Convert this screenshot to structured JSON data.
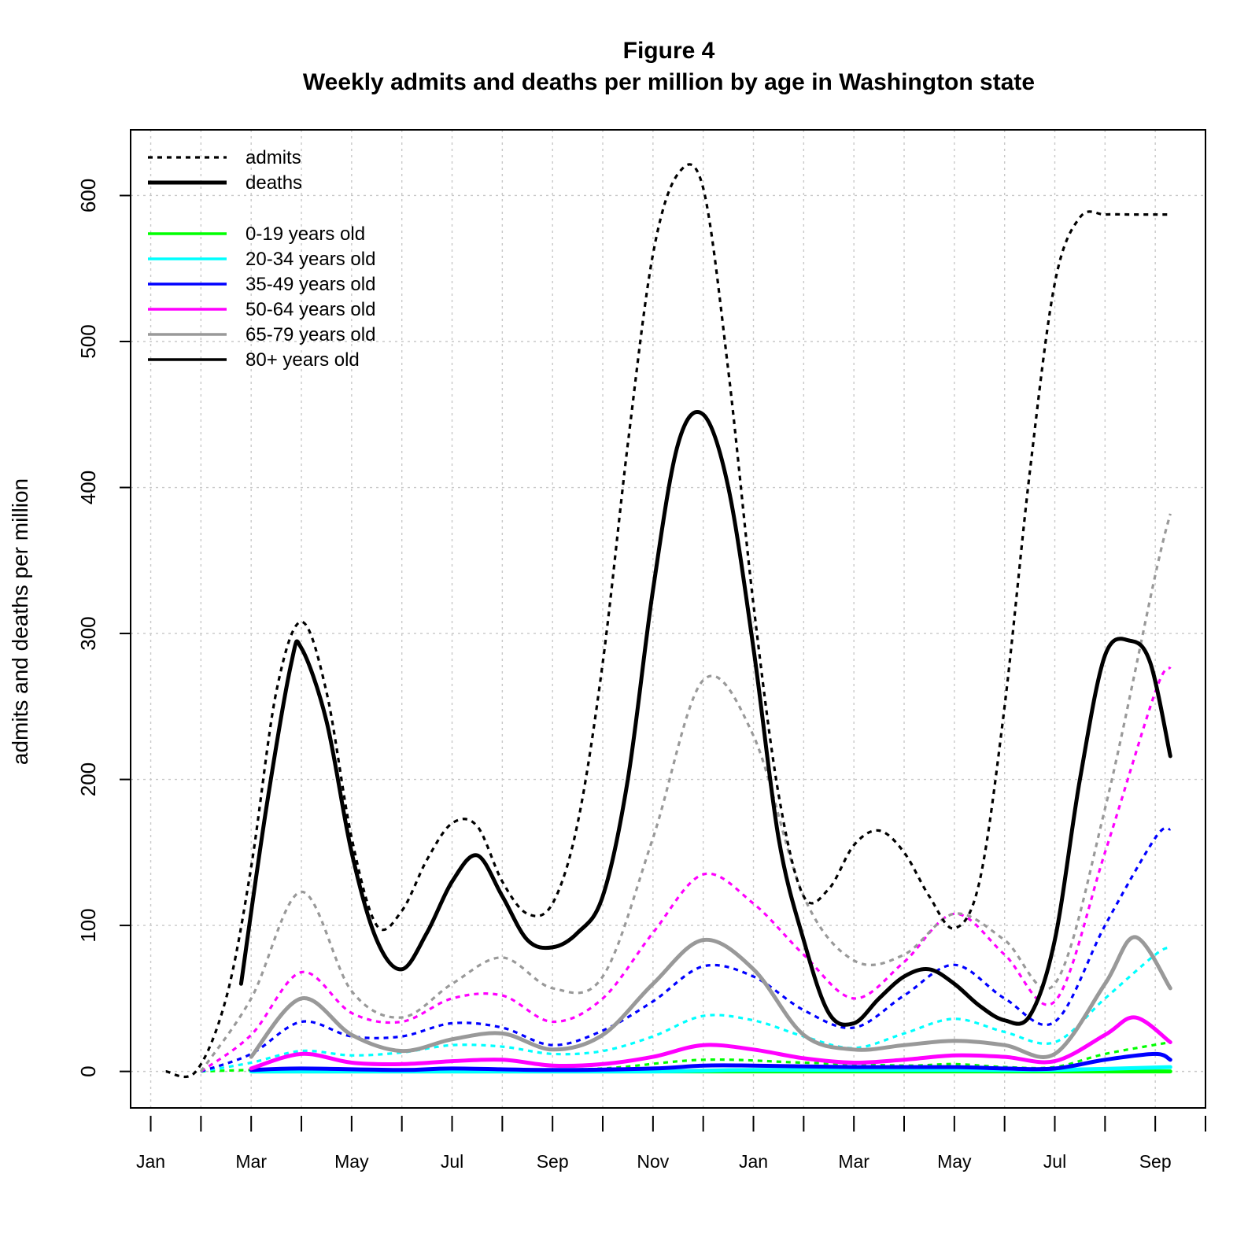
{
  "chart_data": {
    "type": "line",
    "title": "Figure 4",
    "subtitle": "Weekly admits and deaths per million by age in Washington state",
    "xlabel": "",
    "ylabel": "admits and deaths per million",
    "x_unit": "month index (0 = Jan, year 1; 12 = Jan, year 2)",
    "xlim": [
      -0.4,
      21.0
    ],
    "ylim": [
      -25,
      645
    ],
    "yticks": [
      0,
      100,
      200,
      300,
      400,
      500,
      600
    ],
    "xticks": [
      {
        "x": 0,
        "label": "Jan"
      },
      {
        "x": 1,
        "label": ""
      },
      {
        "x": 2,
        "label": "Mar"
      },
      {
        "x": 3,
        "label": ""
      },
      {
        "x": 4,
        "label": "May"
      },
      {
        "x": 5,
        "label": ""
      },
      {
        "x": 6,
        "label": "Jul"
      },
      {
        "x": 7,
        "label": ""
      },
      {
        "x": 8,
        "label": "Sep"
      },
      {
        "x": 9,
        "label": ""
      },
      {
        "x": 10,
        "label": "Nov"
      },
      {
        "x": 11,
        "label": ""
      },
      {
        "x": 12,
        "label": "Jan"
      },
      {
        "x": 13,
        "label": ""
      },
      {
        "x": 14,
        "label": "Mar"
      },
      {
        "x": 15,
        "label": ""
      },
      {
        "x": 16,
        "label": "May"
      },
      {
        "x": 17,
        "label": ""
      },
      {
        "x": 18,
        "label": "Jul"
      },
      {
        "x": 19,
        "label": ""
      },
      {
        "x": 20,
        "label": "Sep"
      },
      {
        "x": 21,
        "label": ""
      }
    ],
    "grid": true,
    "legend_position": "top-left",
    "legend": {
      "linetypes": [
        {
          "label": "admits",
          "style": "dotted"
        },
        {
          "label": "deaths",
          "style": "solid"
        }
      ],
      "age_groups": [
        {
          "label": "0-19 years old",
          "color": "#00ff00"
        },
        {
          "label": "20-34 years old",
          "color": "#00ffff"
        },
        {
          "label": "35-49 years old",
          "color": "#0000ff"
        },
        {
          "label": "50-64 years old",
          "color": "#ff00ff"
        },
        {
          "label": "65-79 years old",
          "color": "#999999"
        },
        {
          "label": "80+ years old",
          "color": "#000000"
        }
      ]
    },
    "series": [
      {
        "age_group": "0-19 years old",
        "measure": "admits",
        "color": "#00ff00",
        "x": [
          1.0,
          2.0,
          3.0,
          5.0,
          7.0,
          9.0,
          11.0,
          13.0,
          15.0,
          16.0,
          17.0,
          18.0,
          19.0,
          20.3
        ],
        "y": [
          0,
          1,
          1,
          1,
          1,
          2,
          8,
          6,
          4,
          5,
          3,
          3,
          12,
          20
        ]
      },
      {
        "age_group": "0-19 years old",
        "measure": "deaths",
        "color": "#00ff00",
        "x": [
          2.0,
          6.0,
          10.0,
          14.0,
          18.0,
          20.3
        ],
        "y": [
          0,
          0,
          0,
          0,
          0,
          0
        ]
      },
      {
        "age_group": "20-34 years old",
        "measure": "admits",
        "color": "#00ffff",
        "x": [
          1.0,
          2.0,
          3.0,
          4.0,
          5.0,
          6.0,
          7.0,
          8.0,
          9.0,
          10.0,
          11.0,
          12.0,
          13.0,
          14.0,
          15.0,
          16.0,
          17.0,
          18.0,
          19.0,
          20.0,
          20.3
        ],
        "y": [
          0,
          6,
          14,
          11,
          13,
          18,
          17,
          12,
          14,
          24,
          38,
          35,
          24,
          16,
          26,
          36,
          27,
          20,
          50,
          80,
          85
        ]
      },
      {
        "age_group": "20-34 years old",
        "measure": "deaths",
        "color": "#00ffff",
        "x": [
          2.0,
          6.0,
          10.0,
          12.0,
          16.0,
          18.0,
          20.3
        ],
        "y": [
          0,
          0,
          0,
          1,
          1,
          1,
          3
        ]
      },
      {
        "age_group": "35-49 years old",
        "measure": "admits",
        "color": "#0000ff",
        "x": [
          1.0,
          2.0,
          3.0,
          4.0,
          5.0,
          6.0,
          7.0,
          8.0,
          9.0,
          10.0,
          11.0,
          12.0,
          13.0,
          14.0,
          15.0,
          16.0,
          17.0,
          18.0,
          19.0,
          20.0,
          20.3
        ],
        "y": [
          0,
          12,
          34,
          24,
          24,
          33,
          30,
          18,
          28,
          48,
          72,
          65,
          42,
          30,
          52,
          73,
          50,
          34,
          100,
          160,
          166
        ]
      },
      {
        "age_group": "35-49 years old",
        "measure": "deaths",
        "color": "#0000ff",
        "x": [
          2.0,
          3.0,
          5.0,
          6.0,
          8.0,
          10.0,
          11.0,
          12.0,
          14.0,
          16.0,
          17.0,
          18.0,
          19.0,
          20.0,
          20.3
        ],
        "y": [
          1,
          2,
          1,
          2,
          1,
          2,
          4,
          4,
          3,
          3,
          2,
          2,
          8,
          12,
          8
        ]
      },
      {
        "age_group": "50-64 years old",
        "measure": "admits",
        "color": "#ff00ff",
        "x": [
          1.0,
          2.0,
          3.0,
          4.0,
          5.0,
          6.0,
          7.0,
          8.0,
          9.0,
          10.0,
          11.0,
          12.0,
          13.0,
          14.0,
          15.0,
          16.0,
          17.0,
          18.0,
          19.0,
          20.0,
          20.3
        ],
        "y": [
          0,
          25,
          68,
          40,
          34,
          50,
          52,
          34,
          50,
          95,
          135,
          115,
          80,
          50,
          75,
          108,
          80,
          48,
          150,
          260,
          277
        ]
      },
      {
        "age_group": "50-64 years old",
        "measure": "deaths",
        "color": "#ff00ff",
        "x": [
          2.0,
          3.0,
          4.0,
          5.0,
          6.0,
          7.0,
          8.0,
          9.0,
          10.0,
          11.0,
          12.0,
          13.0,
          14.0,
          15.0,
          16.0,
          17.0,
          18.0,
          19.0,
          19.6,
          20.3
        ],
        "y": [
          2,
          12,
          6,
          5,
          7,
          8,
          4,
          5,
          10,
          18,
          15,
          9,
          6,
          8,
          11,
          10,
          7,
          25,
          37,
          20
        ]
      },
      {
        "age_group": "65-79 years old",
        "measure": "admits",
        "color": "#999999",
        "x": [
          1.0,
          2.0,
          3.0,
          4.0,
          5.0,
          6.0,
          7.0,
          8.0,
          9.0,
          10.0,
          11.0,
          12.0,
          13.0,
          14.0,
          15.0,
          16.0,
          17.0,
          18.0,
          19.0,
          20.0,
          20.3
        ],
        "y": [
          0,
          50,
          123,
          55,
          37,
          60,
          78,
          57,
          65,
          160,
          268,
          230,
          120,
          76,
          80,
          108,
          90,
          60,
          180,
          340,
          382
        ]
      },
      {
        "age_group": "65-79 years old",
        "measure": "deaths",
        "color": "#999999",
        "x": [
          2.0,
          3.0,
          4.0,
          5.0,
          6.0,
          7.0,
          8.0,
          9.0,
          10.0,
          11.0,
          12.0,
          13.0,
          14.0,
          15.0,
          16.0,
          17.0,
          18.0,
          19.0,
          19.6,
          20.3
        ],
        "y": [
          10,
          50,
          25,
          14,
          22,
          26,
          15,
          25,
          60,
          90,
          70,
          25,
          15,
          18,
          21,
          18,
          12,
          60,
          92,
          57
        ]
      },
      {
        "age_group": "80+ years old",
        "measure": "admits",
        "color": "#000000",
        "x": [
          0.3,
          0.9,
          1.5,
          2.0,
          2.5,
          3.0,
          3.5,
          4.0,
          4.5,
          5.0,
          5.5,
          6.0,
          6.5,
          7.0,
          7.5,
          8.0,
          8.5,
          9.0,
          9.5,
          10.0,
          10.5,
          11.0,
          11.5,
          12.0,
          12.5,
          13.0,
          13.5,
          14.0,
          14.5,
          15.0,
          15.5,
          16.0,
          16.5,
          17.0,
          17.5,
          18.0,
          18.5,
          19.0,
          19.5,
          20.0,
          20.3
        ],
        "y": [
          0,
          0,
          50,
          140,
          260,
          308,
          260,
          160,
          100,
          110,
          145,
          170,
          168,
          130,
          108,
          115,
          170,
          280,
          430,
          560,
          615,
          605,
          480,
          320,
          190,
          120,
          125,
          155,
          165,
          150,
          120,
          98,
          130,
          250,
          410,
          540,
          585,
          587,
          587,
          587,
          587
        ]
      },
      {
        "age_group": "80+ years old",
        "measure": "deaths",
        "color": "#000000",
        "x": [
          1.8,
          2.3,
          2.8,
          3.0,
          3.5,
          4.0,
          4.5,
          5.0,
          5.5,
          6.0,
          6.5,
          7.0,
          7.5,
          8.0,
          8.5,
          9.0,
          9.5,
          10.0,
          10.5,
          11.0,
          11.5,
          12.0,
          12.5,
          13.0,
          13.5,
          14.0,
          14.5,
          15.0,
          15.5,
          16.0,
          16.5,
          17.0,
          17.5,
          18.0,
          18.5,
          19.0,
          19.5,
          19.9,
          20.3
        ],
        "y": [
          60,
          180,
          280,
          290,
          240,
          150,
          90,
          70,
          95,
          130,
          148,
          120,
          90,
          85,
          95,
          120,
          200,
          330,
          430,
          450,
          400,
          290,
          160,
          90,
          40,
          33,
          50,
          65,
          70,
          60,
          45,
          35,
          38,
          90,
          200,
          285,
          295,
          280,
          216
        ]
      }
    ]
  }
}
